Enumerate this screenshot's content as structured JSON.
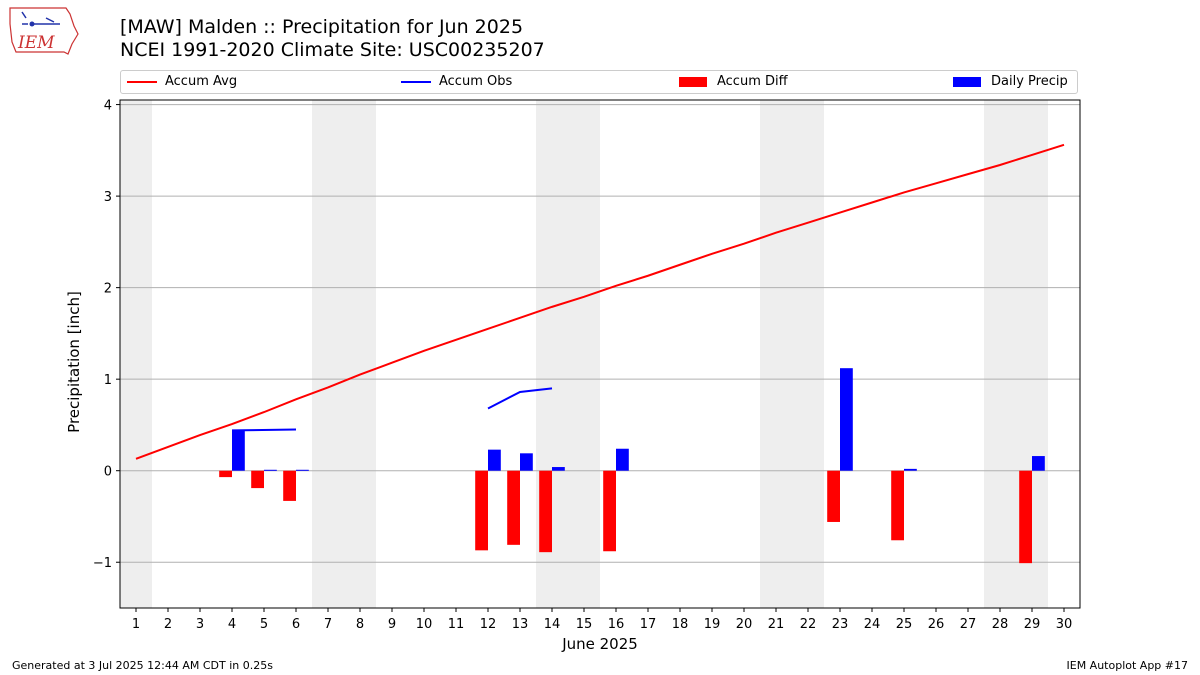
{
  "header": {
    "title_line1": "[MAW] Malden :: Precipitation for Jun 2025",
    "title_line2": "NCEI 1991-2020 Climate Site: USC00235207",
    "logo_text": "IEM"
  },
  "legend": {
    "items": [
      {
        "label": "Accum Avg",
        "color": "#ff0000",
        "kind": "line"
      },
      {
        "label": "Accum Obs",
        "color": "#0000ff",
        "kind": "line"
      },
      {
        "label": "Accum Diff",
        "color": "#ff0000",
        "kind": "box"
      },
      {
        "label": "Daily Precip",
        "color": "#0000ff",
        "kind": "box"
      }
    ]
  },
  "footer": {
    "generated": "Generated at 3 Jul 2025 12:44 AM CDT in 0.25s",
    "app": "IEM Autoplot App #17"
  },
  "chart_data": {
    "type": "bar",
    "title": "[MAW] Malden :: Precipitation for Jun 2025",
    "subtitle": "NCEI 1991-2020 Climate Site: USC00235207",
    "xlabel": "June 2025",
    "ylabel": "Precipitation [inch]",
    "xlim": [
      0.5,
      30.5
    ],
    "ylim": [
      -1.5,
      4.05
    ],
    "yticks": [
      -1,
      0,
      1,
      2,
      3,
      4
    ],
    "ytick_labels": [
      "−1",
      "0",
      "1",
      "2",
      "3",
      "4"
    ],
    "x": [
      1,
      2,
      3,
      4,
      5,
      6,
      7,
      8,
      9,
      10,
      11,
      12,
      13,
      14,
      15,
      16,
      17,
      18,
      19,
      20,
      21,
      22,
      23,
      24,
      25,
      26,
      27,
      28,
      29,
      30
    ],
    "xtick_labels": [
      "1",
      "2",
      "3",
      "4",
      "5",
      "6",
      "7",
      "8",
      "9",
      "10",
      "11",
      "12",
      "13",
      "14",
      "15",
      "16",
      "17",
      "18",
      "19",
      "20",
      "21",
      "22",
      "23",
      "24",
      "25",
      "26",
      "27",
      "28",
      "29",
      "30"
    ],
    "weekend_spans": [
      [
        0.5,
        1.5
      ],
      [
        6.5,
        8.5
      ],
      [
        13.5,
        15.5
      ],
      [
        20.5,
        22.5
      ],
      [
        27.5,
        29.5
      ]
    ],
    "grid": true,
    "legend_position": "top",
    "series": [
      {
        "name": "Accum Avg",
        "type": "line",
        "color": "#ff0000",
        "x": [
          1,
          2,
          3,
          4,
          5,
          6,
          7,
          8,
          9,
          10,
          11,
          12,
          13,
          14,
          15,
          16,
          17,
          18,
          19,
          20,
          21,
          22,
          23,
          24,
          25,
          26,
          27,
          28,
          29,
          30
        ],
        "values": [
          0.13,
          0.26,
          0.39,
          0.51,
          0.64,
          0.78,
          0.91,
          1.05,
          1.18,
          1.31,
          1.43,
          1.55,
          1.67,
          1.79,
          1.9,
          2.02,
          2.13,
          2.25,
          2.37,
          2.48,
          2.6,
          2.71,
          2.82,
          2.93,
          3.04,
          3.14,
          3.24,
          3.34,
          3.45,
          3.56
        ]
      },
      {
        "name": "Accum Obs",
        "type": "line",
        "color": "#0000ff",
        "segments": [
          {
            "x": [
              4,
              6
            ],
            "values": [
              0.44,
              0.45
            ]
          },
          {
            "x": [
              12,
              13,
              14
            ],
            "values": [
              0.68,
              0.86,
              0.9
            ]
          }
        ]
      },
      {
        "name": "Accum Diff",
        "type": "bar",
        "color": "#ff0000",
        "x": [
          4,
          5,
          6,
          12,
          13,
          14,
          16,
          23,
          25,
          29
        ],
        "values": [
          -0.07,
          -0.19,
          -0.33,
          -0.87,
          -0.81,
          -0.89,
          -0.88,
          -0.56,
          -0.76,
          -1.01
        ]
      },
      {
        "name": "Daily Precip",
        "type": "bar",
        "color": "#0000ff",
        "x": [
          4,
          5,
          6,
          12,
          13,
          14,
          16,
          23,
          25,
          29
        ],
        "values": [
          0.44,
          0.01,
          0.01,
          0.23,
          0.19,
          0.04,
          0.24,
          1.12,
          0.02,
          0.16
        ]
      }
    ]
  }
}
